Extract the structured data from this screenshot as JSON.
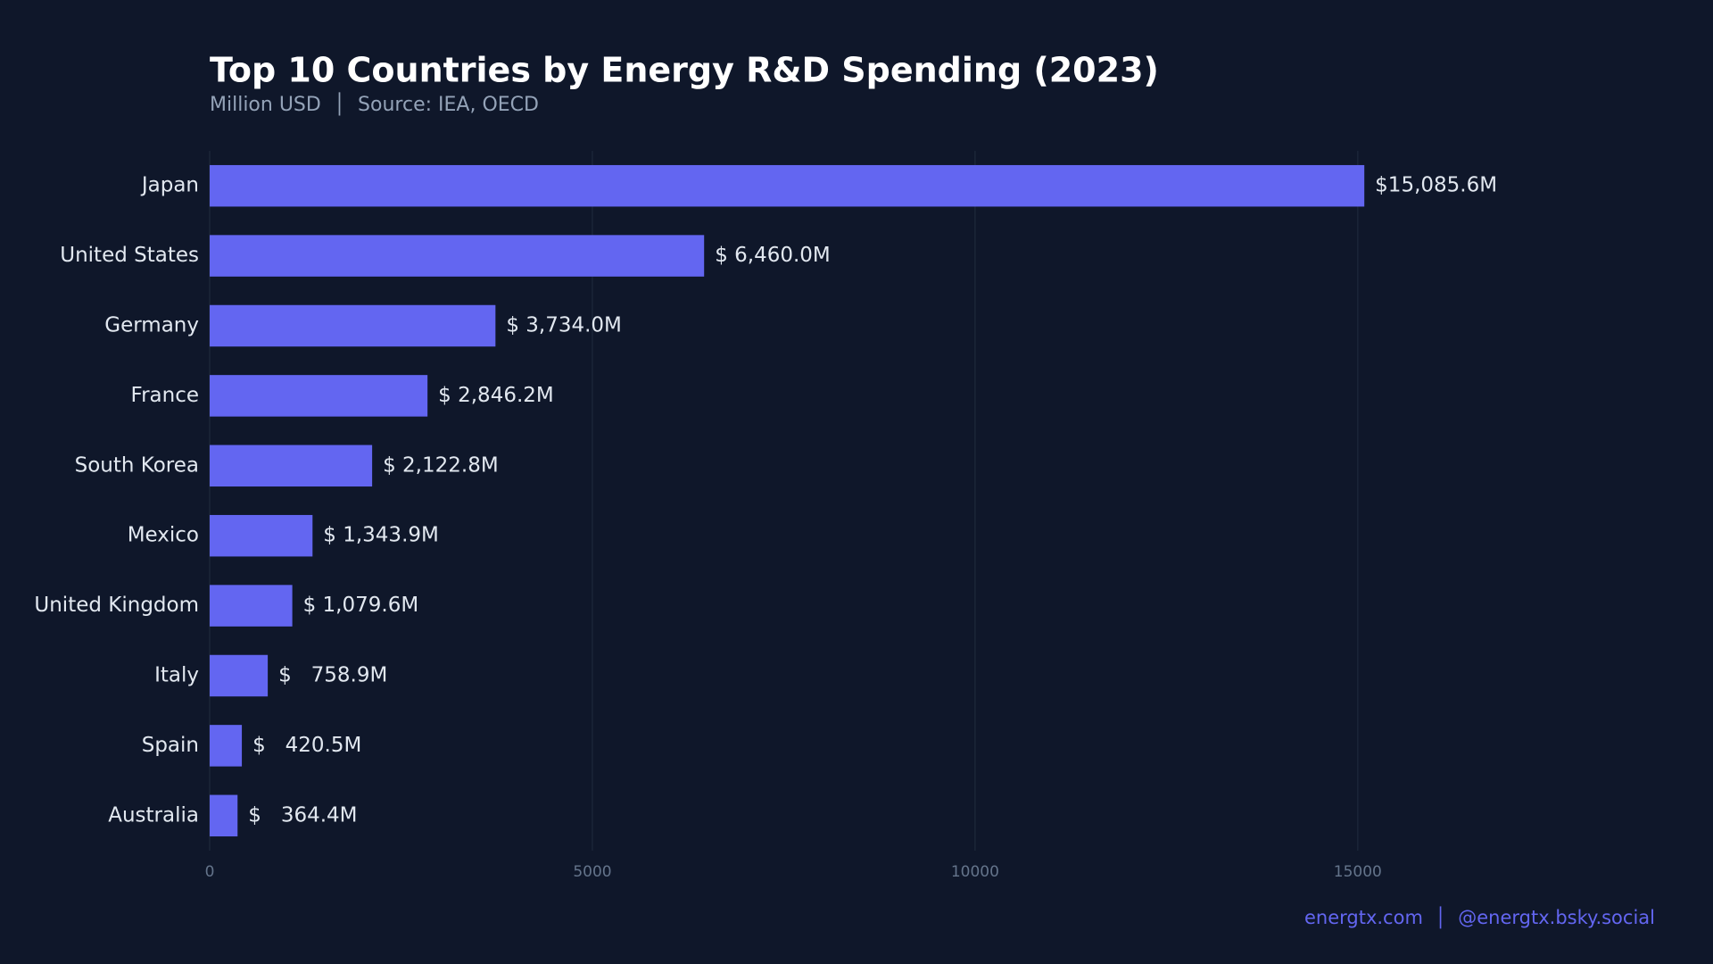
{
  "chart_data": {
    "type": "bar",
    "orientation": "horizontal",
    "title": "Top 10 Countries by Energy R&D Spending (2023)",
    "subtitle": "Million USD  │  Source: IEA, OECD",
    "footer": "energtx.com  │  @energtx.bsky.social",
    "categories": [
      "Japan",
      "United States",
      "Germany",
      "France",
      "South Korea",
      "Mexico",
      "United Kingdom",
      "Italy",
      "Spain",
      "Australia"
    ],
    "values": [
      15085.6,
      6460.0,
      3734.0,
      2846.2,
      2122.8,
      1343.9,
      1079.6,
      758.9,
      420.5,
      364.4
    ],
    "value_labels": [
      "$15,085.6M",
      "$ 6,460.0M",
      "$ 3,734.0M",
      "$ 2,846.2M",
      "$ 2,122.8M",
      "$ 1,343.9M",
      "$ 1,079.6M",
      "$   758.9M",
      "$   420.5M",
      "$   364.4M"
    ],
    "color": "#6366f1",
    "xlim": [
      0,
      19000
    ],
    "xticks": [
      0,
      5000,
      10000,
      15000
    ],
    "grid": true
  }
}
